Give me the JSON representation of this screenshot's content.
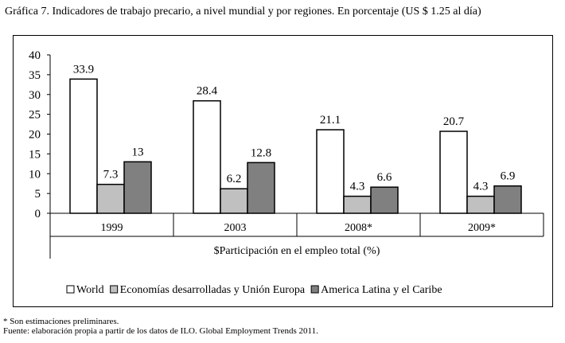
{
  "title": "Gráfica 7. Indicadores de trabajo precario, a nivel mundial y por regiones. En porcentaje (US $ 1.25 al día)",
  "footnotes": {
    "line1": "* Son estimaciones preliminares.",
    "line2": "Fuente: elaboración propia a partir de los datos de ILO. Global Employment Trends 2011."
  },
  "chart_data": {
    "type": "bar",
    "categories": [
      "1999",
      "2003",
      "2008*",
      "2009*"
    ],
    "xlabel": "$Participación en el empleo total (%)",
    "ylabel": "",
    "ylim": [
      0,
      40
    ],
    "yticks": [
      0,
      5,
      10,
      15,
      20,
      25,
      30,
      35,
      40
    ],
    "grid": false,
    "legend_position": "bottom",
    "series": [
      {
        "name": "World",
        "values": [
          33.9,
          28.4,
          21.1,
          20.7
        ],
        "labels": [
          "33.9",
          "28.4",
          "21.1",
          "20.7"
        ],
        "color": "#ffffff"
      },
      {
        "name": "Economías desarrolladas y Unión Europa",
        "values": [
          7.3,
          6.2,
          4.3,
          4.3
        ],
        "labels": [
          "7.3",
          "6.2",
          "4.3",
          "4.3"
        ],
        "color": "#c0c0c0"
      },
      {
        "name": "America Latina y el Caribe",
        "values": [
          13,
          12.8,
          6.6,
          6.9
        ],
        "labels": [
          "13",
          "12.8",
          "6.6",
          "6.9"
        ],
        "color": "#808080"
      }
    ]
  }
}
